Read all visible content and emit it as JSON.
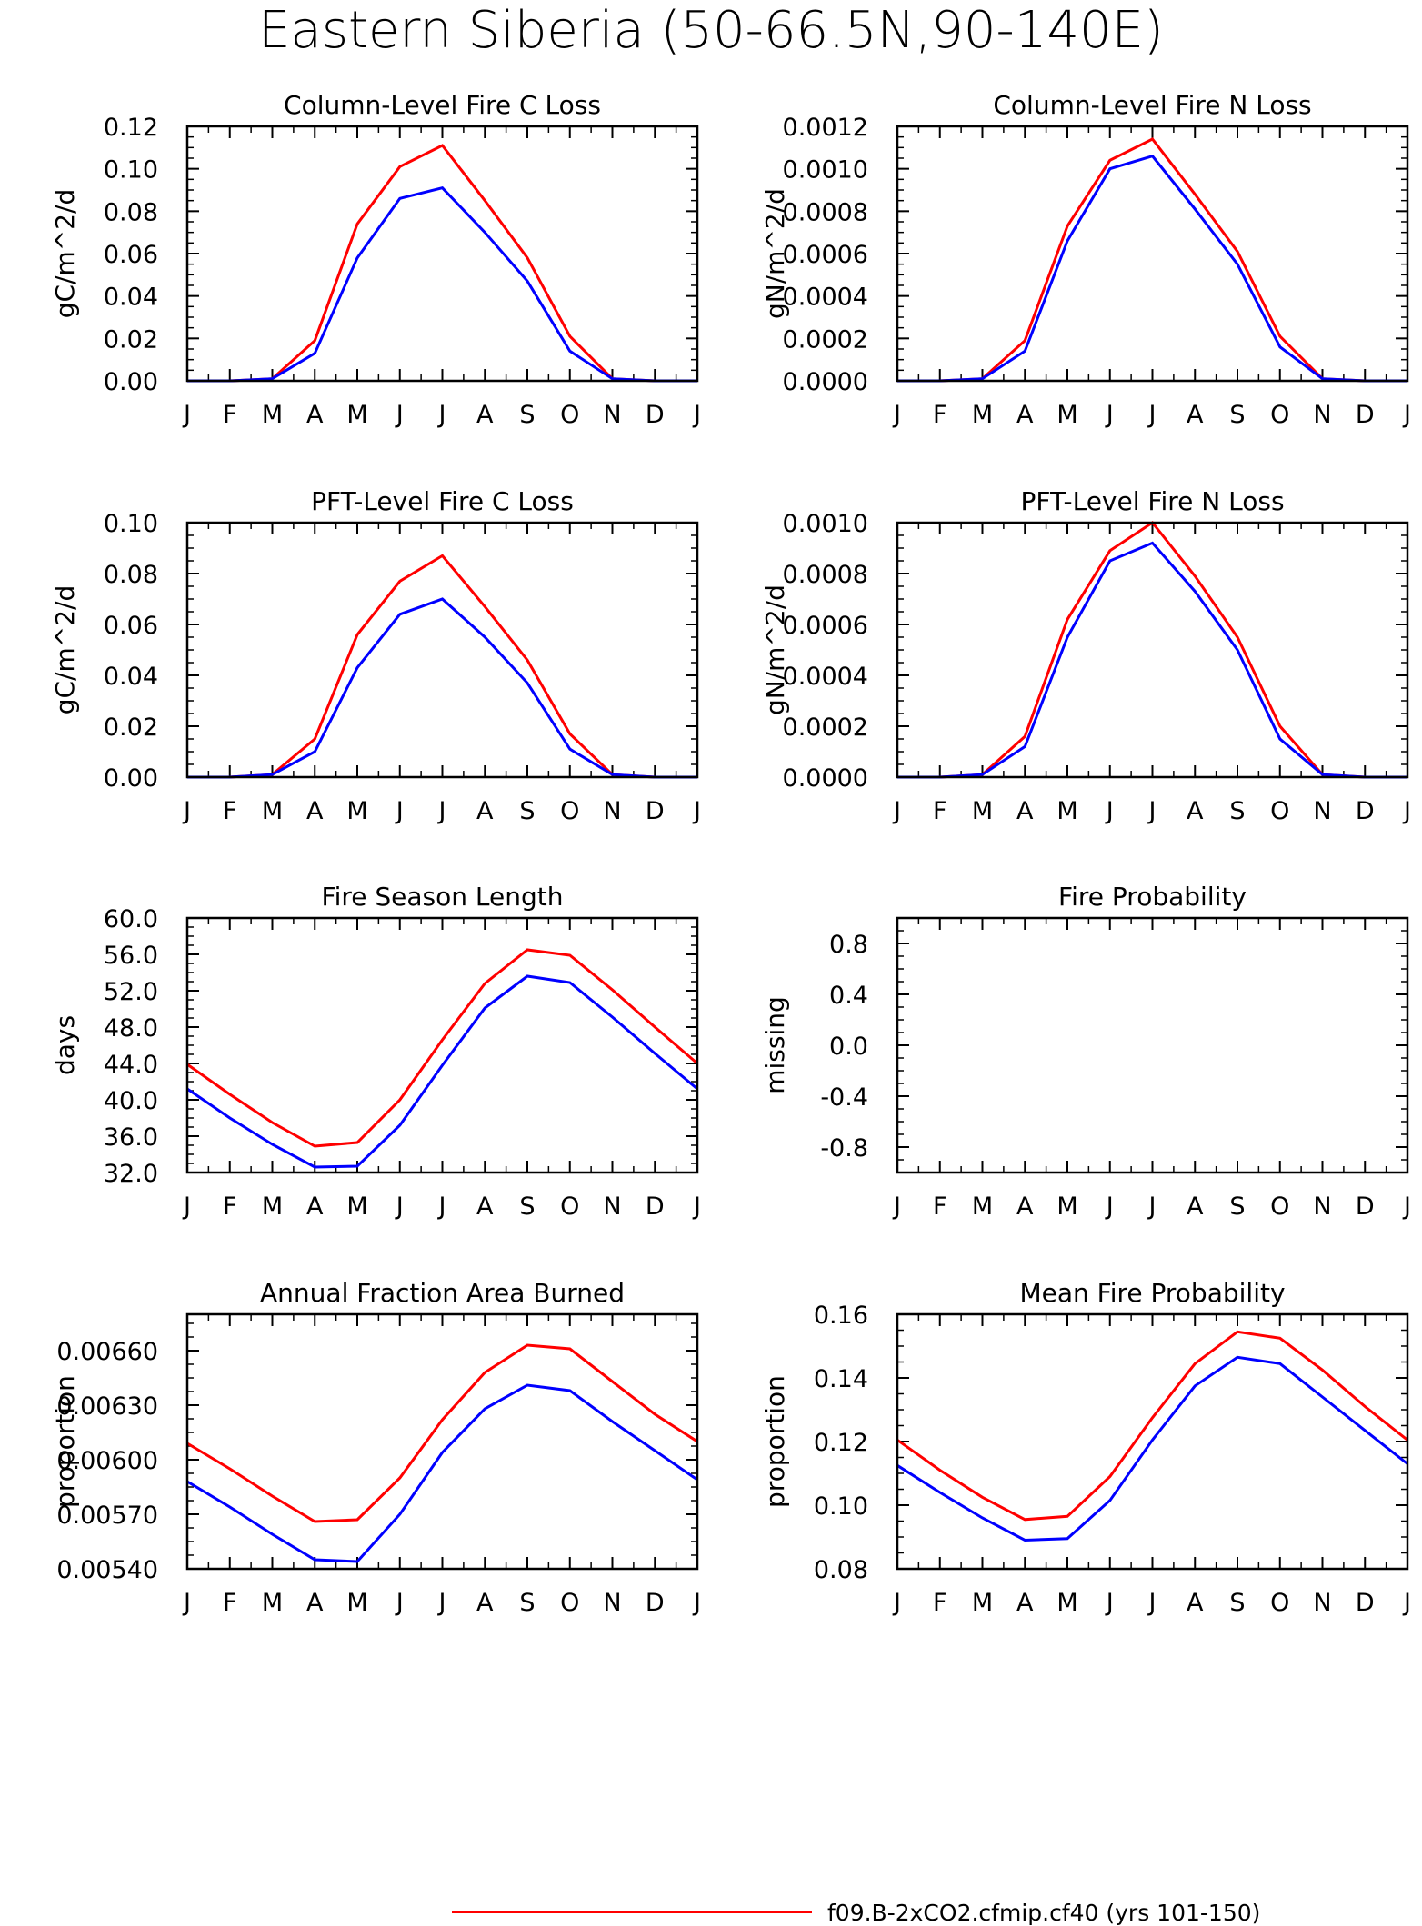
{
  "figure_title": "Eastern Siberia (50-66.5N,90-140E)",
  "legend": {
    "entries": [
      {
        "label": "f09.B-2xCO2.cfmip.cf40 (yrs 101-150)",
        "color": "#ff0000"
      }
    ]
  },
  "colors": {
    "series_1": "#ff0000",
    "series_2": "#0000ff",
    "axes": "#000000"
  },
  "chart_data": [
    {
      "type": "line",
      "title": "Column-Level Fire C Loss",
      "ylabel": "gC/m^2/d",
      "xlabel": "",
      "categories": [
        "J",
        "F",
        "M",
        "A",
        "M",
        "J",
        "J",
        "A",
        "S",
        "O",
        "N",
        "D",
        "J"
      ],
      "ylim": [
        0,
        0.12
      ],
      "yticks": [
        0.0,
        0.02,
        0.04,
        0.06,
        0.08,
        0.1,
        0.12
      ],
      "ytick_labels": [
        "0.00",
        "0.02",
        "0.04",
        "0.06",
        "0.08",
        "0.10",
        "0.12"
      ],
      "series": [
        {
          "color": "#ff0000",
          "values": [
            0,
            0,
            0.001,
            0.019,
            0.074,
            0.101,
            0.111,
            0.085,
            0.058,
            0.021,
            0.001,
            0,
            0
          ]
        },
        {
          "color": "#0000ff",
          "values": [
            0,
            0,
            0.001,
            0.013,
            0.058,
            0.086,
            0.091,
            0.07,
            0.047,
            0.014,
            0.001,
            0,
            0
          ]
        }
      ]
    },
    {
      "type": "line",
      "title": "Column-Level Fire N Loss",
      "ylabel": "gN/m^2/d",
      "xlabel": "",
      "categories": [
        "J",
        "F",
        "M",
        "A",
        "M",
        "J",
        "J",
        "A",
        "S",
        "O",
        "N",
        "D",
        "J"
      ],
      "ylim": [
        0,
        0.0012
      ],
      "yticks": [
        0,
        0.0002,
        0.0004,
        0.0006,
        0.0008,
        0.001,
        0.0012
      ],
      "ytick_labels": [
        "0.0000",
        "0.0002",
        "0.0004",
        "0.0006",
        "0.0008",
        "0.0010",
        "0.0012"
      ],
      "series": [
        {
          "color": "#ff0000",
          "values": [
            0,
            0,
            1e-05,
            0.00019,
            0.00073,
            0.00104,
            0.00114,
            0.00088,
            0.00061,
            0.00021,
            1e-05,
            0,
            0
          ]
        },
        {
          "color": "#0000ff",
          "values": [
            0,
            0,
            1e-05,
            0.00014,
            0.00066,
            0.001,
            0.00106,
            0.00081,
            0.00055,
            0.00016,
            1e-05,
            0,
            0
          ]
        }
      ]
    },
    {
      "type": "line",
      "title": "PFT-Level Fire C Loss",
      "ylabel": "gC/m^2/d",
      "xlabel": "",
      "categories": [
        "J",
        "F",
        "M",
        "A",
        "M",
        "J",
        "J",
        "A",
        "S",
        "O",
        "N",
        "D",
        "J"
      ],
      "ylim": [
        0,
        0.1
      ],
      "yticks": [
        0.0,
        0.02,
        0.04,
        0.06,
        0.08,
        0.1
      ],
      "ytick_labels": [
        "0.00",
        "0.02",
        "0.04",
        "0.06",
        "0.08",
        "0.10"
      ],
      "series": [
        {
          "color": "#ff0000",
          "values": [
            0,
            0,
            0.001,
            0.015,
            0.056,
            0.077,
            0.087,
            0.067,
            0.046,
            0.017,
            0.001,
            0,
            0
          ]
        },
        {
          "color": "#0000ff",
          "values": [
            0,
            0,
            0.001,
            0.01,
            0.043,
            0.064,
            0.07,
            0.055,
            0.037,
            0.011,
            0.001,
            0,
            0
          ]
        }
      ]
    },
    {
      "type": "line",
      "title": "PFT-Level Fire N Loss",
      "ylabel": "gN/m^2/d",
      "xlabel": "",
      "categories": [
        "J",
        "F",
        "M",
        "A",
        "M",
        "J",
        "J",
        "A",
        "S",
        "O",
        "N",
        "D",
        "J"
      ],
      "ylim": [
        0,
        0.001
      ],
      "yticks": [
        0,
        0.0002,
        0.0004,
        0.0006,
        0.0008,
        0.001
      ],
      "ytick_labels": [
        "0.0000",
        "0.0002",
        "0.0004",
        "0.0006",
        "0.0008",
        "0.0010"
      ],
      "series": [
        {
          "color": "#ff0000",
          "values": [
            0,
            0,
            1e-05,
            0.00016,
            0.00062,
            0.00089,
            0.001,
            0.00079,
            0.00055,
            0.0002,
            1e-05,
            0,
            0
          ]
        },
        {
          "color": "#0000ff",
          "values": [
            0,
            0,
            1e-05,
            0.00012,
            0.00055,
            0.00085,
            0.00092,
            0.00073,
            0.0005,
            0.00015,
            1e-05,
            0,
            0
          ]
        }
      ]
    },
    {
      "type": "line",
      "title": "Fire Season Length",
      "ylabel": "days",
      "xlabel": "",
      "categories": [
        "J",
        "F",
        "M",
        "A",
        "M",
        "J",
        "J",
        "A",
        "S",
        "O",
        "N",
        "D",
        "J"
      ],
      "ylim": [
        32,
        60
      ],
      "yticks": [
        32,
        36,
        40,
        44,
        48,
        52,
        56,
        60
      ],
      "ytick_labels": [
        "32.0",
        "36.0",
        "40.0",
        "44.0",
        "48.0",
        "52.0",
        "56.0",
        "60.0"
      ],
      "series": [
        {
          "color": "#ff0000",
          "values": [
            43.9,
            40.6,
            37.5,
            34.9,
            35.3,
            40.0,
            46.6,
            52.8,
            56.5,
            55.9,
            52.1,
            48.0,
            44.0
          ]
        },
        {
          "color": "#0000ff",
          "values": [
            41.2,
            38.0,
            35.1,
            32.6,
            32.7,
            37.2,
            43.8,
            50.1,
            53.6,
            52.9,
            49.1,
            45.1,
            41.2
          ]
        }
      ]
    },
    {
      "type": "line",
      "title": "Fire Probability",
      "ylabel": "missing",
      "xlabel": "",
      "categories": [
        "J",
        "F",
        "M",
        "A",
        "M",
        "J",
        "J",
        "A",
        "S",
        "O",
        "N",
        "D",
        "J"
      ],
      "ylim": [
        -1,
        1
      ],
      "yticks": [
        -0.8,
        -0.4,
        0.0,
        0.4,
        0.8
      ],
      "ytick_labels": [
        "-0.8",
        "-0.4",
        "0.0",
        "0.4",
        "0.8"
      ],
      "series": []
    },
    {
      "type": "line",
      "title": "Annual Fraction Area Burned",
      "ylabel": "proportion",
      "xlabel": "",
      "categories": [
        "J",
        "F",
        "M",
        "A",
        "M",
        "J",
        "J",
        "A",
        "S",
        "O",
        "N",
        "D",
        "J"
      ],
      "ylim": [
        0.0054,
        0.0068
      ],
      "yticks": [
        0.0054,
        0.0057,
        0.006,
        0.0063,
        0.0066
      ],
      "ytick_labels": [
        "0.00540",
        "0.00570",
        "0.00600",
        "0.00630",
        "0.00660"
      ],
      "series": [
        {
          "color": "#ff0000",
          "values": [
            0.00609,
            0.00595,
            0.0058,
            0.00566,
            0.00567,
            0.0059,
            0.00622,
            0.00648,
            0.00663,
            0.00661,
            0.00643,
            0.00625,
            0.0061
          ]
        },
        {
          "color": "#0000ff",
          "values": [
            0.00588,
            0.00574,
            0.00559,
            0.00545,
            0.00544,
            0.0057,
            0.00604,
            0.00628,
            0.00641,
            0.00638,
            0.00621,
            0.00605,
            0.00589
          ]
        }
      ]
    },
    {
      "type": "line",
      "title": "Mean Fire Probability",
      "ylabel": "proportion",
      "xlabel": "",
      "categories": [
        "J",
        "F",
        "M",
        "A",
        "M",
        "J",
        "J",
        "A",
        "S",
        "O",
        "N",
        "D",
        "J"
      ],
      "ylim": [
        0.08,
        0.16
      ],
      "yticks": [
        0.08,
        0.1,
        0.12,
        0.14,
        0.16
      ],
      "ytick_labels": [
        "0.08",
        "0.10",
        "0.12",
        "0.14",
        "0.16"
      ],
      "series": [
        {
          "color": "#ff0000",
          "values": [
            0.1205,
            0.111,
            0.1025,
            0.0955,
            0.0965,
            0.109,
            0.1275,
            0.1445,
            0.1545,
            0.1525,
            0.1425,
            0.131,
            0.1205
          ]
        },
        {
          "color": "#0000ff",
          "values": [
            0.1125,
            0.104,
            0.096,
            0.089,
            0.0895,
            0.1015,
            0.1205,
            0.1375,
            0.1465,
            0.1445,
            0.134,
            0.1235,
            0.113
          ]
        }
      ]
    }
  ]
}
